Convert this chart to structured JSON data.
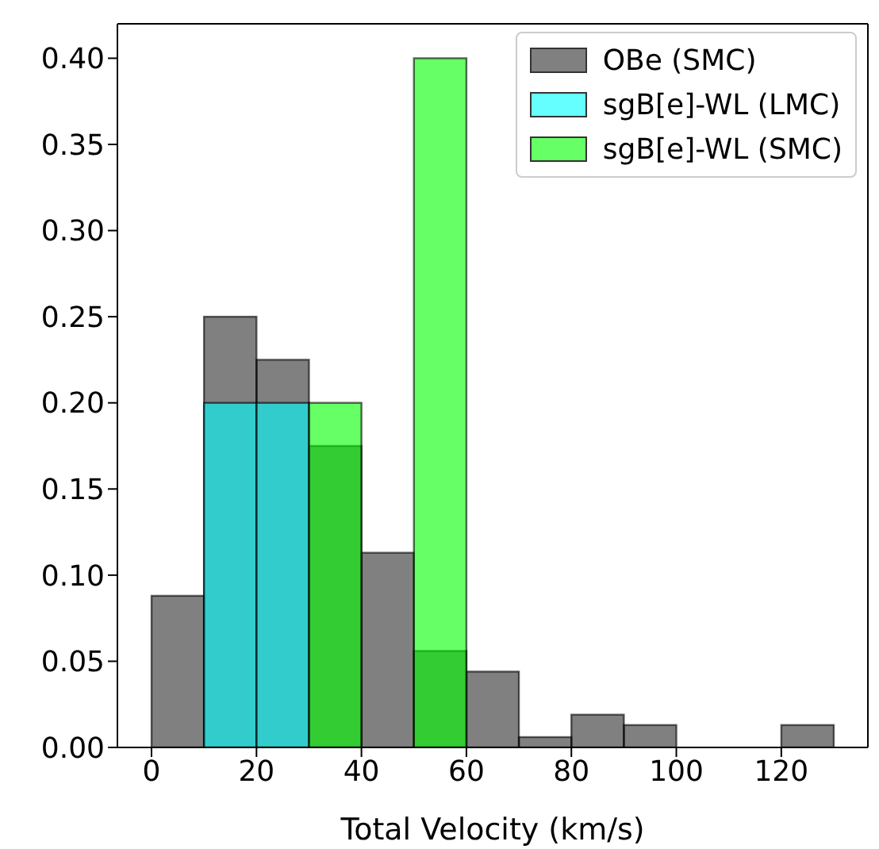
{
  "chart_data": {
    "type": "histogram",
    "xlabel": "Total Velocity (km/s)",
    "bins": [
      0,
      10,
      20,
      30,
      40,
      50,
      60,
      70,
      80,
      90,
      100,
      110,
      120,
      130
    ],
    "series": [
      {
        "name": "OBe (SMC)",
        "color": "#808080",
        "values": [
          0.088,
          0.25,
          0.225,
          0.175,
          0.113,
          0.056,
          0.044,
          0.006,
          0.019,
          0.013,
          null,
          null,
          0.013
        ]
      },
      {
        "name": "sgB[e]-WL (LMC)",
        "color": "#66ffff",
        "values": [
          null,
          0.2,
          0.2,
          null,
          null,
          null,
          null,
          null,
          null,
          null,
          null,
          null,
          null
        ]
      },
      {
        "name": "sgB[e]-WL (SMC)",
        "color": "#66ff66",
        "values": [
          null,
          null,
          null,
          0.2,
          null,
          0.4,
          null,
          null,
          null,
          null,
          null,
          null,
          null
        ]
      }
    ],
    "xlim": [
      -6.5,
      136.5
    ],
    "xticks": [
      0,
      20,
      40,
      60,
      80,
      100,
      120
    ],
    "ylim": [
      0,
      0.42
    ],
    "yticks": [
      {
        "value": 0,
        "label": "0.00"
      },
      0.05,
      {
        "value": 0.1,
        "label": "0.10"
      },
      0.15,
      {
        "value": 0.2,
        "label": "0.20"
      },
      0.25,
      {
        "value": 0.3,
        "label": "0.30"
      },
      0.35,
      {
        "value": 0.4,
        "label": "0.40"
      }
    ],
    "legend": "top right"
  }
}
